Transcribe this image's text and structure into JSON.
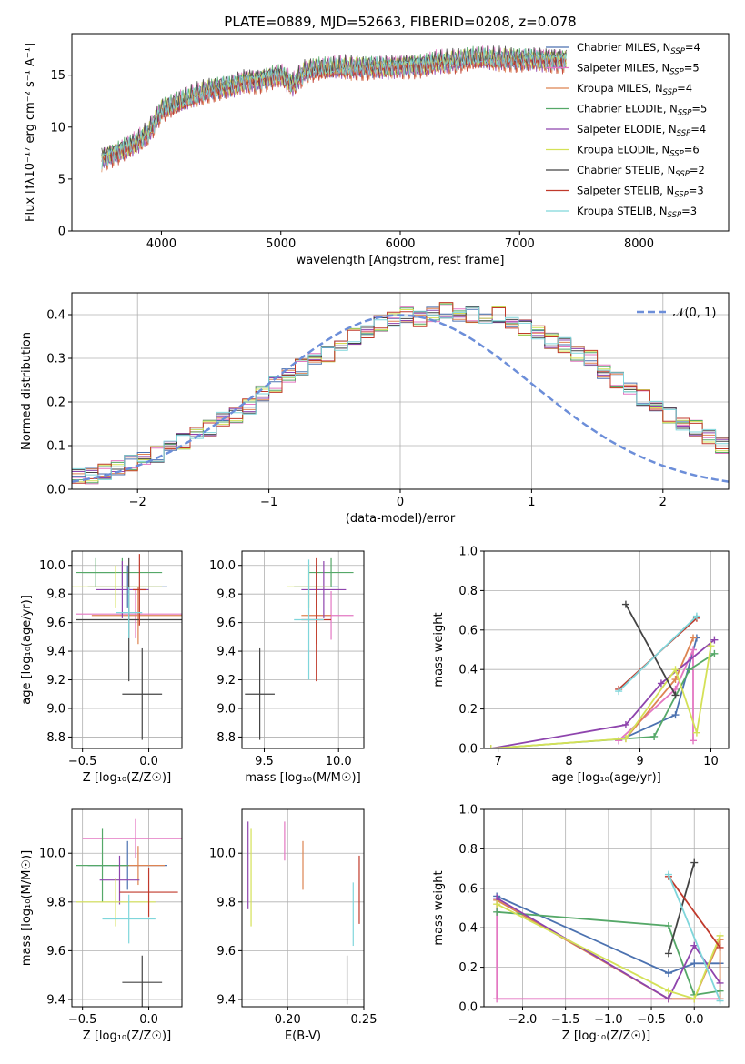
{
  "figure_title": "PLATE=0889, MJD=52663, FIBERID=0208, z=0.078",
  "legend_entries": [
    {
      "name": "Chabrier MILES",
      "nssp": "4",
      "color": "#4c72b0"
    },
    {
      "name": "Salpeter MILES",
      "nssp": "5",
      "color": "#e377c2"
    },
    {
      "name": "Kroupa MILES",
      "nssp": "4",
      "color": "#dd8452"
    },
    {
      "name": "Chabrier ELODIE",
      "nssp": "5",
      "color": "#55a868"
    },
    {
      "name": "Salpeter ELODIE",
      "nssp": "4",
      "color": "#8e44ad"
    },
    {
      "name": "Kroupa ELODIE",
      "nssp": "6",
      "color": "#d4e157"
    },
    {
      "name": "Chabrier STELIB",
      "nssp": "2",
      "color": "#444444"
    },
    {
      "name": "Salpeter STELIB",
      "nssp": "3",
      "color": "#c0392b"
    },
    {
      "name": "Kroupa STELIB",
      "nssp": "3",
      "color": "#7fd6db"
    }
  ],
  "chart_data": [
    {
      "id": "spectrum",
      "type": "line",
      "xlabel": "wavelength [Angstrom, rest frame]",
      "ylabel": "Flux [fλ10⁻¹⁷ erg cm⁻² s⁻¹ A⁻¹]",
      "xlim": [
        3250,
        8750
      ],
      "ylim": [
        0,
        19
      ],
      "xticks": [
        4000,
        5000,
        6000,
        7000,
        8000
      ],
      "yticks": [
        0,
        5,
        10,
        15
      ],
      "grid": false,
      "legend": "right",
      "x": [
        3500,
        3600,
        3700,
        3800,
        3900,
        4000,
        4100,
        4200,
        4300,
        4400,
        4500,
        4600,
        4700,
        4800,
        4900,
        5000,
        5100,
        5200,
        5300,
        5400,
        5500,
        5600,
        5700,
        5800,
        5900,
        6000,
        6100,
        6200,
        6300,
        6400,
        6500,
        6600,
        6700,
        6800,
        6900,
        7000,
        7100,
        7200,
        7300,
        7400
      ],
      "y": [
        7.0,
        7.5,
        8.0,
        8.5,
        9.5,
        11.5,
        12.0,
        12.5,
        13.0,
        13.5,
        13.8,
        14.0,
        14.5,
        14.5,
        14.8,
        15.0,
        14.0,
        15.2,
        15.5,
        15.5,
        15.6,
        15.6,
        15.7,
        15.8,
        15.8,
        15.9,
        16.0,
        16.0,
        16.2,
        16.2,
        16.3,
        16.5,
        16.5,
        16.4,
        16.5,
        16.5,
        16.6,
        16.5,
        16.5,
        16.5
      ]
    },
    {
      "id": "residuals",
      "type": "step",
      "xlabel": "(data-model)/error",
      "ylabel": "Normed distribution",
      "xlim": [
        -2.5,
        2.5
      ],
      "ylim": [
        0,
        0.45
      ],
      "xticks": [
        -2,
        -1,
        0,
        1,
        2
      ],
      "yticks": [
        0.0,
        0.1,
        0.2,
        0.3,
        0.4
      ],
      "grid": true,
      "legend": "top-right",
      "bin_width": 0.1,
      "gaussian_label": "𝒩(0, 1)",
      "hist": [
        0.03,
        0.03,
        0.04,
        0.05,
        0.06,
        0.07,
        0.08,
        0.1,
        0.11,
        0.13,
        0.14,
        0.16,
        0.17,
        0.19,
        0.22,
        0.24,
        0.26,
        0.28,
        0.3,
        0.31,
        0.33,
        0.35,
        0.36,
        0.38,
        0.39,
        0.4,
        0.39,
        0.4,
        0.41,
        0.4,
        0.4,
        0.39,
        0.4,
        0.38,
        0.37,
        0.36,
        0.34,
        0.33,
        0.31,
        0.3,
        0.27,
        0.25,
        0.23,
        0.21,
        0.19,
        0.17,
        0.15,
        0.14,
        0.12,
        0.1
      ]
    },
    {
      "id": "age_vs_Z",
      "type": "errorbar",
      "xlabel": "Z [log₁₀(Z/Z☉)]",
      "ylabel": "age  [log₁₀(age/yr)]",
      "xlim": [
        -0.58,
        0.25
      ],
      "ylim": [
        8.72,
        10.1
      ],
      "xticks": [
        -0.5,
        0.0
      ],
      "yticks": [
        8.8,
        9.0,
        9.2,
        9.4,
        9.6,
        9.8,
        10.0
      ],
      "grid": true,
      "points": [
        {
          "x": -0.16,
          "y": 9.85,
          "xe": 0.3,
          "ye": 0.15,
          "color": "#4c72b0"
        },
        {
          "x": -0.1,
          "y": 9.66,
          "xe": 0.45,
          "ye": 0.17,
          "color": "#e377c2"
        },
        {
          "x": -0.08,
          "y": 9.65,
          "xe": 0.35,
          "ye": 0.2,
          "color": "#dd8452"
        },
        {
          "x": -0.4,
          "y": 9.95,
          "xe": 0.15,
          "ye": 0.1,
          "color": "#55a868"
        },
        {
          "x": -0.2,
          "y": 9.95,
          "xe": 0.3,
          "ye": 0.1,
          "color": "#55a868"
        },
        {
          "x": -0.2,
          "y": 9.83,
          "xe": 0.2,
          "ye": 0.2,
          "color": "#8e44ad"
        },
        {
          "x": -0.25,
          "y": 9.85,
          "xe": 0.35,
          "ye": 0.15,
          "color": "#d4e157"
        },
        {
          "x": -0.05,
          "y": 9.1,
          "xe": 0.15,
          "ye": 0.32,
          "color": "#444444"
        },
        {
          "x": -0.15,
          "y": 9.62,
          "xe": 0.4,
          "ye": 0.43,
          "color": "#444444"
        },
        {
          "x": -0.07,
          "y": 9.83,
          "xe": 0.05,
          "ye": 0.25,
          "color": "#c0392b"
        },
        {
          "x": -0.15,
          "y": 9.67,
          "xe": 0.1,
          "ye": 0.18,
          "color": "#7fd6db"
        }
      ]
    },
    {
      "id": "age_vs_mass",
      "type": "errorbar",
      "xlabel": "mass [log₁₀(M/M☉)]",
      "ylabel": "",
      "xlim": [
        9.35,
        10.17
      ],
      "ylim": [
        8.72,
        10.1
      ],
      "xticks": [
        9.5,
        10.0
      ],
      "yticks": [
        8.8,
        9.0,
        9.2,
        9.4,
        9.6,
        9.8,
        10.0
      ],
      "grid": true,
      "points": [
        {
          "x": 9.85,
          "y": 9.85,
          "xe": 0.15,
          "ye": 0.15,
          "color": "#4c72b0"
        },
        {
          "x": 9.95,
          "y": 9.65,
          "xe": 0.15,
          "ye": 0.17,
          "color": "#e377c2"
        },
        {
          "x": 9.85,
          "y": 9.65,
          "xe": 0.1,
          "ye": 0.2,
          "color": "#dd8452"
        },
        {
          "x": 9.95,
          "y": 9.95,
          "xe": 0.15,
          "ye": 0.1,
          "color": "#55a868"
        },
        {
          "x": 9.9,
          "y": 9.83,
          "xe": 0.15,
          "ye": 0.2,
          "color": "#8e44ad"
        },
        {
          "x": 9.8,
          "y": 9.85,
          "xe": 0.15,
          "ye": 0.15,
          "color": "#d4e157"
        },
        {
          "x": 9.47,
          "y": 9.1,
          "xe": 0.1,
          "ye": 0.32,
          "color": "#444444"
        },
        {
          "x": 9.85,
          "y": 9.62,
          "xe": 0.1,
          "ye": 0.43,
          "color": "#c0392b"
        },
        {
          "x": 9.8,
          "y": 9.62,
          "xe": 0.1,
          "ye": 0.42,
          "color": "#7fd6db"
        }
      ]
    },
    {
      "id": "weight_vs_age",
      "type": "line",
      "xlabel": "age  [log₁₀(age/yr)]",
      "ylabel": "mass weight",
      "xlim": [
        6.8,
        10.25
      ],
      "ylim": [
        0,
        1
      ],
      "xticks": [
        7,
        8,
        9,
        10
      ],
      "yticks": [
        0.0,
        0.2,
        0.4,
        0.6,
        0.8,
        1.0
      ],
      "grid": true,
      "series": [
        {
          "color": "#4c72b0",
          "x": [
            8.7,
            9.5,
            9.8
          ],
          "y": [
            0.04,
            0.17,
            0.56
          ]
        },
        {
          "color": "#e377c2",
          "x": [
            8.7,
            9.5,
            9.75,
            9.75
          ],
          "y": [
            0.04,
            0.3,
            0.5,
            0.04
          ]
        },
        {
          "color": "#dd8452",
          "x": [
            8.8,
            9.5,
            9.75
          ],
          "y": [
            0.05,
            0.35,
            0.56
          ]
        },
        {
          "color": "#55a868",
          "x": [
            6.9,
            9.2,
            9.7,
            10.05
          ],
          "y": [
            0.0,
            0.06,
            0.4,
            0.48
          ]
        },
        {
          "color": "#8e44ad",
          "x": [
            6.9,
            8.8,
            9.3,
            10.05
          ],
          "y": [
            0.0,
            0.12,
            0.33,
            0.55
          ]
        },
        {
          "color": "#d4e157",
          "x": [
            6.9,
            8.8,
            9.5,
            9.8,
            10.0
          ],
          "y": [
            0.0,
            0.05,
            0.4,
            0.08,
            0.52
          ]
        },
        {
          "color": "#444444",
          "x": [
            8.8,
            9.5
          ],
          "y": [
            0.73,
            0.27
          ]
        },
        {
          "color": "#c0392b",
          "x": [
            8.7,
            9.8
          ],
          "y": [
            0.3,
            0.66
          ]
        },
        {
          "color": "#7fd6db",
          "x": [
            8.7,
            9.8
          ],
          "y": [
            0.29,
            0.67
          ]
        }
      ]
    },
    {
      "id": "mass_vs_Z",
      "type": "errorbar",
      "xlabel": "Z [log₁₀(Z/Z☉)]",
      "ylabel": "mass [log₁₀(M/M☉)]",
      "xlim": [
        -0.58,
        0.25
      ],
      "ylim": [
        9.37,
        10.18
      ],
      "xticks": [
        -0.5,
        0.0
      ],
      "yticks": [
        9.4,
        9.6,
        9.8,
        10.0
      ],
      "grid": true,
      "points": [
        {
          "x": -0.16,
          "y": 9.95,
          "xe": 0.3,
          "ye": 0.1,
          "color": "#4c72b0"
        },
        {
          "x": -0.1,
          "y": 10.06,
          "xe": 0.4,
          "ye": 0.08,
          "color": "#e377c2"
        },
        {
          "x": -0.08,
          "y": 9.95,
          "xe": 0.2,
          "ye": 0.08,
          "color": "#dd8452"
        },
        {
          "x": -0.35,
          "y": 9.95,
          "xe": 0.2,
          "ye": 0.15,
          "color": "#55a868"
        },
        {
          "x": -0.22,
          "y": 9.89,
          "xe": 0.15,
          "ye": 0.1,
          "color": "#8e44ad"
        },
        {
          "x": -0.25,
          "y": 9.8,
          "xe": 0.3,
          "ye": 0.1,
          "color": "#d4e157"
        },
        {
          "x": -0.05,
          "y": 9.47,
          "xe": 0.15,
          "ye": 0.11,
          "color": "#444444"
        },
        {
          "x": 0.0,
          "y": 9.84,
          "xe": 0.22,
          "ye": 0.1,
          "color": "#c0392b"
        },
        {
          "x": -0.15,
          "y": 9.73,
          "xe": 0.2,
          "ye": 0.1,
          "color": "#7fd6db"
        }
      ]
    },
    {
      "id": "mass_vs_EBV",
      "type": "errorbar",
      "xlabel": "E(B-V)",
      "ylabel": "",
      "xlim": [
        0.17,
        0.25
      ],
      "ylim": [
        9.37,
        10.18
      ],
      "xticks": [
        0.2,
        0.25
      ],
      "yticks": [
        9.4,
        9.6,
        9.8,
        10.0
      ],
      "grid": true,
      "points": [
        {
          "x": 0.174,
          "y": 9.95,
          "xe": 0,
          "ye": 0.18,
          "color": "#8e44ad"
        },
        {
          "x": 0.176,
          "y": 9.9,
          "xe": 0,
          "ye": 0.2,
          "color": "#d4e157"
        },
        {
          "x": 0.198,
          "y": 10.05,
          "xe": 0,
          "ye": 0.08,
          "color": "#e377c2"
        },
        {
          "x": 0.21,
          "y": 9.95,
          "xe": 0,
          "ye": 0.1,
          "color": "#dd8452"
        },
        {
          "x": 0.243,
          "y": 9.75,
          "xe": 0,
          "ye": 0.13,
          "color": "#7fd6db"
        },
        {
          "x": 0.247,
          "y": 9.85,
          "xe": 0,
          "ye": 0.14,
          "color": "#c0392b"
        },
        {
          "x": 0.239,
          "y": 9.48,
          "xe": 0,
          "ye": 0.1,
          "color": "#444444"
        }
      ]
    },
    {
      "id": "weight_vs_Z",
      "type": "line",
      "xlabel": "Z [log₁₀(Z/Z☉)]",
      "ylabel": "mass weight",
      "xlim": [
        -2.45,
        0.4
      ],
      "ylim": [
        0,
        1
      ],
      "xticks": [
        -2.0,
        -1.5,
        -1.0,
        -0.5,
        0.0
      ],
      "yticks": [
        0.0,
        0.2,
        0.4,
        0.6,
        0.8,
        1.0
      ],
      "grid": true,
      "series": [
        {
          "color": "#4c72b0",
          "x": [
            -2.3,
            -0.3,
            0.0,
            0.3
          ],
          "y": [
            0.56,
            0.17,
            0.22,
            0.22
          ]
        },
        {
          "color": "#e377c2",
          "x": [
            -2.3,
            -2.3,
            0.0,
            0.3
          ],
          "y": [
            0.55,
            0.04,
            0.04,
            0.04
          ]
        },
        {
          "color": "#dd8452",
          "x": [
            -2.3,
            -0.3,
            0.0,
            0.3,
            0.3
          ],
          "y": [
            0.54,
            0.04,
            0.04,
            0.34,
            0.04
          ]
        },
        {
          "color": "#55a868",
          "x": [
            -2.3,
            -0.3,
            0.0,
            0.3
          ],
          "y": [
            0.48,
            0.41,
            0.06,
            0.08
          ]
        },
        {
          "color": "#8e44ad",
          "x": [
            -2.3,
            -0.3,
            0.0,
            0.3
          ],
          "y": [
            0.55,
            0.04,
            0.31,
            0.12
          ]
        },
        {
          "color": "#d4e157",
          "x": [
            -2.3,
            -0.3,
            0.0,
            0.3
          ],
          "y": [
            0.52,
            0.08,
            0.04,
            0.36
          ]
        },
        {
          "color": "#444444",
          "x": [
            -0.3,
            0.0
          ],
          "y": [
            0.27,
            0.73
          ]
        },
        {
          "color": "#c0392b",
          "x": [
            -0.3,
            0.3
          ],
          "y": [
            0.66,
            0.3
          ]
        },
        {
          "color": "#7fd6db",
          "x": [
            -0.3,
            0.3
          ],
          "y": [
            0.67,
            0.03
          ]
        }
      ]
    }
  ]
}
